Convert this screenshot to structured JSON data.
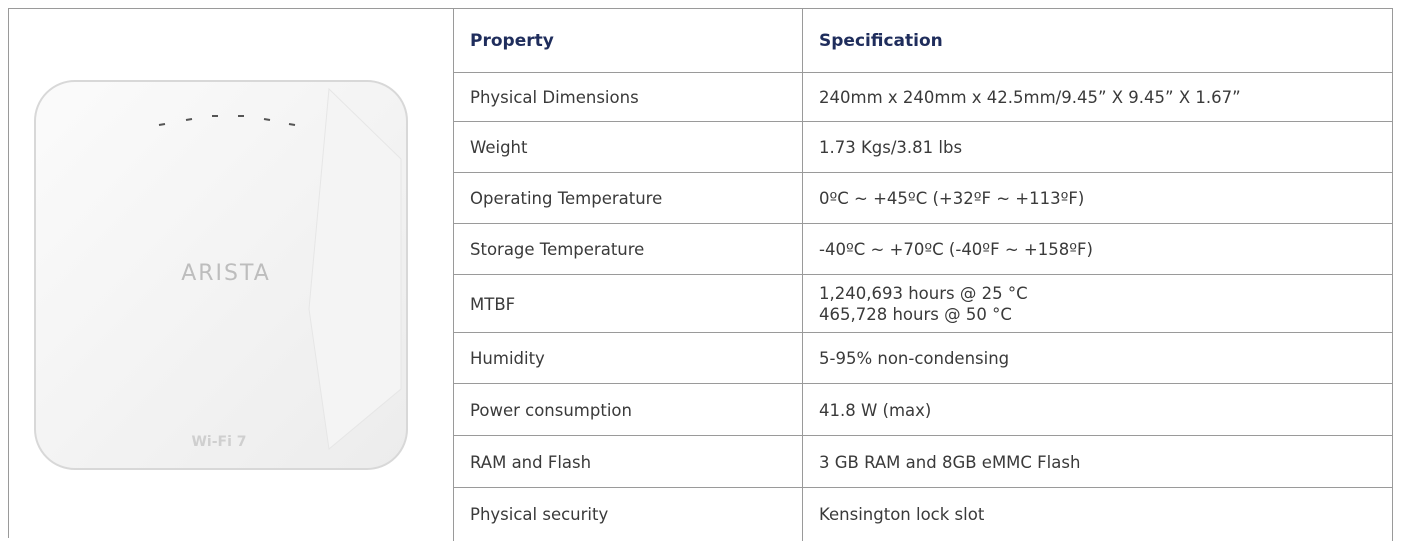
{
  "image": {
    "brand": "ARISTA",
    "label": "Wi-Fi 7"
  },
  "table": {
    "header": [
      "Property",
      "Specification"
    ],
    "rows": [
      [
        "Physical Dimensions",
        "240mm x 240mm x 42.5mm/9.45” X 9.45” X 1.67”"
      ],
      [
        "Weight",
        "1.73 Kgs/3.81 lbs"
      ],
      [
        "Operating Temperature",
        "0ºC ~ +45ºC (+32ºF ~ +113ºF)"
      ],
      [
        "Storage Temperature",
        "-40ºC ~ +70ºC (-40ºF ~ +158ºF)"
      ],
      [
        "MTBF",
        [
          "1,240,693 hours @ 25 °C",
          "465,728 hours @ 50 °C"
        ]
      ],
      [
        "Humidity",
        "5-95% non-condensing"
      ],
      [
        "Power consumption",
        "41.8 W (max)"
      ],
      [
        "RAM and Flash",
        "3 GB RAM and 8GB eMMC Flash"
      ],
      [
        "Physical security",
        "Kensington lock slot"
      ]
    ]
  }
}
